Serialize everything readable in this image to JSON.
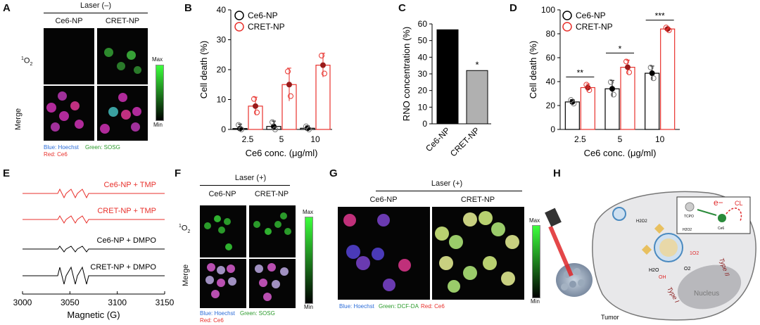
{
  "panels": {
    "A": {
      "letter": "A",
      "header": "Laser (–)",
      "cols": [
        "Ce6-NP",
        "CRET-NP"
      ],
      "rows": [
        "1O2",
        "Merge"
      ],
      "scale_max": "Max",
      "scale_min": "Min",
      "legend": {
        "blue": "Blue: Hoechst",
        "green": "Green: SOSG",
        "red": "Red: Ce6"
      }
    },
    "B": {
      "letter": "B"
    },
    "C": {
      "letter": "C"
    },
    "D": {
      "letter": "D"
    },
    "E": {
      "letter": "E",
      "traces": [
        "Ce6-NP + TMP",
        "CRET-NP + TMP",
        "Ce6-NP + DMPO",
        "CRET-NP + DMPO"
      ],
      "ticks": [
        "3000",
        "3050",
        "3100",
        "3150"
      ],
      "xlabel": "Magnetic (G)"
    },
    "F": {
      "letter": "F",
      "header": "Laser (+)",
      "cols": [
        "Ce6-NP",
        "CRET-NP"
      ],
      "rows": [
        "1O2",
        "Merge"
      ],
      "scale_max": "Max",
      "scale_min": "Min",
      "legend": {
        "blue": "Blue: Hoechst",
        "green": "Green: SOSG",
        "red": "Red: Ce6"
      }
    },
    "G": {
      "letter": "G",
      "header": "Laser (+)",
      "cols": [
        "Ce6-NP",
        "CRET-NP"
      ],
      "scale_max": "Max",
      "scale_min": "Min",
      "legend": {
        "blue": "Blue: Hoechst",
        "green": "Green: DCF-DA",
        "red": "Red: Ce6"
      }
    },
    "H": {
      "letter": "H",
      "labels": {
        "tumor": "Tumor",
        "nucleus": "Nucleus",
        "type1": "Type I",
        "type2": "Type II",
        "h2o2_a": "H2O2",
        "h2o2_b": "H2O2",
        "tcpo": "TCPO",
        "ce6": "Ce6",
        "cl": "CL",
        "e": "e−",
        "o2": "O2",
        "singlet": "1O2",
        "h2o": "H2O",
        "oh": "OH"
      }
    }
  },
  "chart_data": [
    {
      "id": "B",
      "type": "bar",
      "categories": [
        "2.5",
        "5",
        "10"
      ],
      "series": [
        {
          "name": "Ce6-NP",
          "values": [
            0.3,
            1.0,
            0.4
          ],
          "color": "#000000"
        },
        {
          "name": "CRET-NP",
          "values": [
            7.8,
            15.0,
            21.5
          ],
          "color": "#e8312c"
        }
      ],
      "errors": [
        [
          1.5,
          1.8,
          0.8
        ],
        [
          3.0,
          5.5,
          4.0
        ]
      ],
      "xlabel": "Ce6 conc. (μg/ml)",
      "ylabel": "Cell death (%)",
      "ylim": [
        0,
        40
      ],
      "yticks": [
        "0",
        "10",
        "20",
        "30",
        "40"
      ],
      "legend": "top-left"
    },
    {
      "id": "C",
      "type": "bar",
      "categories": [
        "Ce6-NP",
        "CRET-NP"
      ],
      "values": [
        56.5,
        32.0
      ],
      "colors": [
        "#000000",
        "#b0b0b0"
      ],
      "ylabel": "RNO concentration (%)",
      "ylim": [
        0,
        60
      ],
      "yticks": [
        "0",
        "10",
        "20",
        "30",
        "40",
        "50",
        "60"
      ],
      "annotation": "*"
    },
    {
      "id": "D",
      "type": "bar",
      "categories": [
        "2.5",
        "5",
        "10"
      ],
      "series": [
        {
          "name": "Ce6-NP",
          "values": [
            23,
            34,
            47
          ],
          "color": "#000000"
        },
        {
          "name": "CRET-NP",
          "values": [
            35,
            52,
            84
          ],
          "color": "#e8312c"
        }
      ],
      "errors": [
        [
          2,
          7,
          6
        ],
        [
          3,
          6,
          1.5
        ]
      ],
      "significance": [
        "**",
        "*",
        "***"
      ],
      "xlabel": "Ce6 conc. (μg/ml)",
      "ylabel": "Cell death (%)",
      "ylim": [
        0,
        100
      ],
      "yticks": [
        "0",
        "20",
        "40",
        "60",
        "80",
        "100"
      ],
      "legend": "top-left"
    }
  ]
}
